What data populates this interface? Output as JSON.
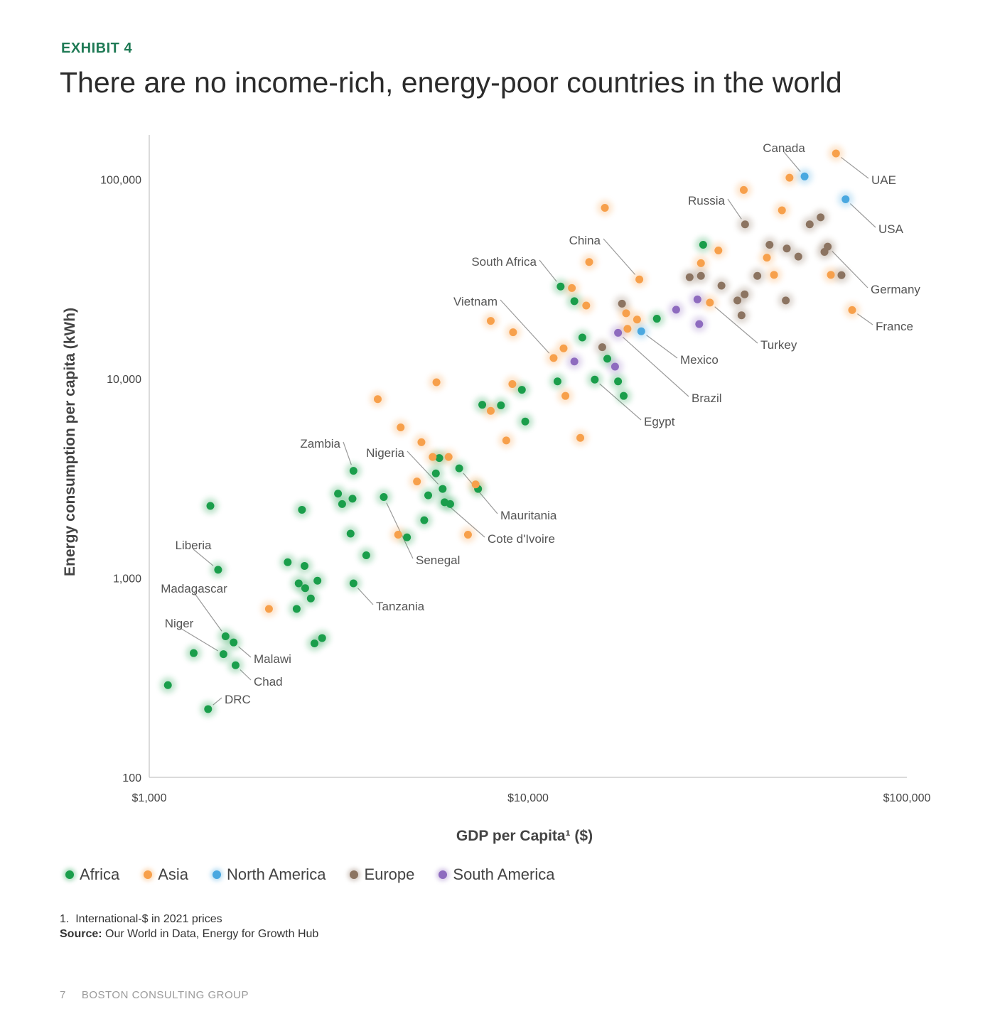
{
  "exhibit_label": "EXHIBIT 4",
  "headline": "There are no income-rich, energy-poor countries in the world",
  "footnote": "1.  International-$ in 2021 prices",
  "source_label": "Source:",
  "source_text": "Our World in Data, Energy for Growth Hub",
  "footer": {
    "page": "7",
    "brand": "BOSTON CONSULTING GROUP"
  },
  "colors": {
    "Africa": "#1a9e4b",
    "Asia": "#f7a04b",
    "North America": "#4aa8e0",
    "Europe": "#8c7461",
    "South America": "#8e6bbf"
  },
  "legend": [
    "Africa",
    "Asia",
    "North America",
    "Europe",
    "South America"
  ],
  "chart_data": {
    "type": "scatter",
    "x_scale": "log",
    "y_scale": "log",
    "xlabel": "GDP per Capita¹ ($)",
    "ylabel": "Energy consumption per capita (kWh)",
    "xlim": [
      1000,
      100000
    ],
    "ylim": [
      100,
      150000
    ],
    "x_ticks": [
      {
        "value": 1000,
        "label": "$1,000"
      },
      {
        "value": 10000,
        "label": "$10,000"
      },
      {
        "value": 100000,
        "label": "$100,000"
      }
    ],
    "y_ticks": [
      {
        "value": 100,
        "label": "100"
      },
      {
        "value": 1000,
        "label": "1,000"
      },
      {
        "value": 10000,
        "label": "10,000"
      },
      {
        "value": 100000,
        "label": "100,000"
      }
    ],
    "points": [
      {
        "x": 1120,
        "y": 290,
        "region": "Africa"
      },
      {
        "x": 1310,
        "y": 420,
        "region": "Africa"
      },
      {
        "x": 1430,
        "y": 220,
        "region": "Africa",
        "label": "DRC"
      },
      {
        "x": 1450,
        "y": 2300,
        "region": "Africa"
      },
      {
        "x": 1520,
        "y": 1100,
        "region": "Africa",
        "label": "Liberia"
      },
      {
        "x": 1570,
        "y": 415,
        "region": "Africa",
        "label": "Niger"
      },
      {
        "x": 1590,
        "y": 510,
        "region": "Africa",
        "label": "Madagascar"
      },
      {
        "x": 1670,
        "y": 475,
        "region": "Africa",
        "label": "Malawi"
      },
      {
        "x": 1690,
        "y": 365,
        "region": "Africa",
        "label": "Chad"
      },
      {
        "x": 2320,
        "y": 1200,
        "region": "Africa"
      },
      {
        "x": 2450,
        "y": 700,
        "region": "Africa"
      },
      {
        "x": 2480,
        "y": 940,
        "region": "Africa"
      },
      {
        "x": 2530,
        "y": 2200,
        "region": "Africa"
      },
      {
        "x": 2570,
        "y": 1150,
        "region": "Africa"
      },
      {
        "x": 2580,
        "y": 890,
        "region": "Africa"
      },
      {
        "x": 2670,
        "y": 790,
        "region": "Africa"
      },
      {
        "x": 2730,
        "y": 470,
        "region": "Africa"
      },
      {
        "x": 2780,
        "y": 970,
        "region": "Africa"
      },
      {
        "x": 2860,
        "y": 500,
        "region": "Africa"
      },
      {
        "x": 3150,
        "y": 2650,
        "region": "Africa"
      },
      {
        "x": 3230,
        "y": 2350,
        "region": "Africa"
      },
      {
        "x": 3400,
        "y": 1670,
        "region": "Africa"
      },
      {
        "x": 3440,
        "y": 2500,
        "region": "Africa"
      },
      {
        "x": 3460,
        "y": 3450,
        "region": "Africa",
        "label": "Zambia"
      },
      {
        "x": 3460,
        "y": 940,
        "region": "Africa",
        "label": "Tanzania"
      },
      {
        "x": 3740,
        "y": 1300,
        "region": "Africa"
      },
      {
        "x": 4160,
        "y": 2550,
        "region": "Africa",
        "label": "Senegal"
      },
      {
        "x": 4790,
        "y": 1600,
        "region": "Africa"
      },
      {
        "x": 5320,
        "y": 1950,
        "region": "Africa"
      },
      {
        "x": 5450,
        "y": 2600,
        "region": "Africa"
      },
      {
        "x": 5710,
        "y": 3350,
        "region": "Africa"
      },
      {
        "x": 5830,
        "y": 4000,
        "region": "Africa"
      },
      {
        "x": 5950,
        "y": 2800,
        "region": "Africa",
        "label": "Nigeria"
      },
      {
        "x": 6020,
        "y": 2400,
        "region": "Africa",
        "label": "Cote d'Ivoire"
      },
      {
        "x": 6230,
        "y": 2350,
        "region": "Africa"
      },
      {
        "x": 6580,
        "y": 3550,
        "region": "Africa",
        "label": "Mauritania"
      },
      {
        "x": 7380,
        "y": 2800,
        "region": "Africa"
      },
      {
        "x": 7570,
        "y": 7400,
        "region": "Africa"
      },
      {
        "x": 8480,
        "y": 7350,
        "region": "Africa"
      },
      {
        "x": 9630,
        "y": 8800,
        "region": "Africa"
      },
      {
        "x": 9830,
        "y": 6100,
        "region": "Africa"
      },
      {
        "x": 11960,
        "y": 9700,
        "region": "Africa"
      },
      {
        "x": 12190,
        "y": 29000,
        "region": "Africa",
        "label": "South Africa"
      },
      {
        "x": 13250,
        "y": 24500,
        "region": "Africa"
      },
      {
        "x": 13910,
        "y": 16100,
        "region": "Africa"
      },
      {
        "x": 15000,
        "y": 9900,
        "region": "Africa",
        "label": "Egypt"
      },
      {
        "x": 16190,
        "y": 12600,
        "region": "Africa"
      },
      {
        "x": 17280,
        "y": 9700,
        "region": "Africa"
      },
      {
        "x": 17880,
        "y": 8200,
        "region": "Africa"
      },
      {
        "x": 21880,
        "y": 20000,
        "region": "Africa"
      },
      {
        "x": 28990,
        "y": 47000,
        "region": "Africa"
      },
      {
        "x": 2070,
        "y": 700,
        "region": "Asia"
      },
      {
        "x": 4010,
        "y": 7900,
        "region": "Asia"
      },
      {
        "x": 4540,
        "y": 1650,
        "region": "Asia"
      },
      {
        "x": 4610,
        "y": 5700,
        "region": "Asia"
      },
      {
        "x": 5090,
        "y": 3050,
        "region": "Asia"
      },
      {
        "x": 5230,
        "y": 4800,
        "region": "Asia"
      },
      {
        "x": 5600,
        "y": 4050,
        "region": "Asia"
      },
      {
        "x": 5730,
        "y": 9600,
        "region": "Asia"
      },
      {
        "x": 6170,
        "y": 4050,
        "region": "Asia"
      },
      {
        "x": 6940,
        "y": 1650,
        "region": "Asia"
      },
      {
        "x": 7270,
        "y": 2950,
        "region": "Asia"
      },
      {
        "x": 7970,
        "y": 19500,
        "region": "Asia"
      },
      {
        "x": 7970,
        "y": 6900,
        "region": "Asia"
      },
      {
        "x": 8760,
        "y": 4900,
        "region": "Asia"
      },
      {
        "x": 9090,
        "y": 9400,
        "region": "Asia"
      },
      {
        "x": 9130,
        "y": 17100,
        "region": "Asia"
      },
      {
        "x": 11680,
        "y": 12700,
        "region": "Asia",
        "label": "Vietnam"
      },
      {
        "x": 12410,
        "y": 14200,
        "region": "Asia"
      },
      {
        "x": 12550,
        "y": 8200,
        "region": "Asia"
      },
      {
        "x": 13050,
        "y": 28500,
        "region": "Asia"
      },
      {
        "x": 13740,
        "y": 5050,
        "region": "Asia"
      },
      {
        "x": 14240,
        "y": 23300,
        "region": "Asia"
      },
      {
        "x": 14500,
        "y": 38500,
        "region": "Asia"
      },
      {
        "x": 15950,
        "y": 72000,
        "region": "Asia"
      },
      {
        "x": 18150,
        "y": 21300,
        "region": "Asia"
      },
      {
        "x": 18300,
        "y": 17800,
        "region": "Asia"
      },
      {
        "x": 19400,
        "y": 19800,
        "region": "Asia"
      },
      {
        "x": 19670,
        "y": 31500,
        "region": "Asia",
        "label": "China"
      },
      {
        "x": 28600,
        "y": 38000,
        "region": "Asia"
      },
      {
        "x": 30200,
        "y": 24100,
        "region": "Asia",
        "label": "Turkey"
      },
      {
        "x": 31800,
        "y": 44000,
        "region": "Asia"
      },
      {
        "x": 37100,
        "y": 88500,
        "region": "Asia"
      },
      {
        "x": 42700,
        "y": 40500,
        "region": "Asia"
      },
      {
        "x": 44600,
        "y": 33200,
        "region": "Asia"
      },
      {
        "x": 46800,
        "y": 70000,
        "region": "Asia"
      },
      {
        "x": 49000,
        "y": 102000,
        "region": "Asia"
      },
      {
        "x": 63000,
        "y": 33200,
        "region": "Asia"
      },
      {
        "x": 65000,
        "y": 135000,
        "region": "Asia",
        "label": "UAE"
      },
      {
        "x": 71700,
        "y": 22100,
        "region": "Asia",
        "label": "France"
      },
      {
        "x": 19900,
        "y": 17300,
        "region": "North America",
        "label": "Mexico"
      },
      {
        "x": 53700,
        "y": 103500,
        "region": "North America",
        "label": "Canada"
      },
      {
        "x": 68900,
        "y": 79500,
        "region": "North America",
        "label": "USA"
      },
      {
        "x": 15700,
        "y": 14400,
        "region": "Europe"
      },
      {
        "x": 17700,
        "y": 23800,
        "region": "Europe"
      },
      {
        "x": 26700,
        "y": 32300,
        "region": "Europe"
      },
      {
        "x": 28600,
        "y": 32800,
        "region": "Europe"
      },
      {
        "x": 32400,
        "y": 29300,
        "region": "Europe"
      },
      {
        "x": 35700,
        "y": 24700,
        "region": "Europe"
      },
      {
        "x": 36600,
        "y": 20800,
        "region": "Europe"
      },
      {
        "x": 37300,
        "y": 26500,
        "region": "Europe"
      },
      {
        "x": 37400,
        "y": 59500,
        "region": "Europe",
        "label": "Russia"
      },
      {
        "x": 40300,
        "y": 32800,
        "region": "Europe"
      },
      {
        "x": 43400,
        "y": 47000,
        "region": "Europe"
      },
      {
        "x": 47900,
        "y": 24700,
        "region": "Europe"
      },
      {
        "x": 48200,
        "y": 45000,
        "region": "Europe"
      },
      {
        "x": 51700,
        "y": 41000,
        "region": "Europe"
      },
      {
        "x": 55400,
        "y": 59500,
        "region": "Europe"
      },
      {
        "x": 59200,
        "y": 64500,
        "region": "Europe"
      },
      {
        "x": 60600,
        "y": 43300,
        "region": "Europe"
      },
      {
        "x": 61800,
        "y": 46000,
        "region": "Europe",
        "label": "Germany"
      },
      {
        "x": 67200,
        "y": 33100,
        "region": "Europe"
      },
      {
        "x": 13250,
        "y": 12200,
        "region": "South America"
      },
      {
        "x": 16970,
        "y": 11500,
        "region": "South America"
      },
      {
        "x": 17280,
        "y": 17000,
        "region": "South America",
        "label": "Brazil"
      },
      {
        "x": 24600,
        "y": 22200,
        "region": "South America"
      },
      {
        "x": 28000,
        "y": 25000,
        "region": "South America"
      },
      {
        "x": 28300,
        "y": 18800,
        "region": "South America"
      }
    ],
    "callouts": [
      {
        "name": "Canada",
        "tx": 1103,
        "ty": 208,
        "anchor": "middle"
      },
      {
        "name": "UAE",
        "tx": 1226,
        "ty": 253,
        "anchor": "start"
      },
      {
        "name": "USA",
        "tx": 1236,
        "ty": 322,
        "anchor": "start"
      },
      {
        "name": "Russia",
        "tx": 1020,
        "ty": 282,
        "anchor": "end"
      },
      {
        "name": "China",
        "tx": 845,
        "ty": 338,
        "anchor": "end"
      },
      {
        "name": "South Africa",
        "tx": 755,
        "ty": 368,
        "anchor": "end"
      },
      {
        "name": "Germany",
        "tx": 1225,
        "ty": 407,
        "anchor": "start"
      },
      {
        "name": "France",
        "tx": 1232,
        "ty": 459,
        "anchor": "start"
      },
      {
        "name": "Vietnam",
        "tx": 700,
        "ty": 424,
        "anchor": "end"
      },
      {
        "name": "Turkey",
        "tx": 1070,
        "ty": 485,
        "anchor": "start"
      },
      {
        "name": "Mexico",
        "tx": 957,
        "ty": 506,
        "anchor": "start"
      },
      {
        "name": "Brazil",
        "tx": 973,
        "ty": 560,
        "anchor": "start"
      },
      {
        "name": "Egypt",
        "tx": 906,
        "ty": 593,
        "anchor": "start"
      },
      {
        "name": "Zambia",
        "tx": 479,
        "ty": 624,
        "anchor": "end"
      },
      {
        "name": "Nigeria",
        "tx": 569,
        "ty": 637,
        "anchor": "end"
      },
      {
        "name": "Mauritania",
        "tx": 704,
        "ty": 725,
        "anchor": "start"
      },
      {
        "name": "Cote d'Ivoire",
        "tx": 686,
        "ty": 758,
        "anchor": "start"
      },
      {
        "name": "Senegal",
        "tx": 585,
        "ty": 788,
        "anchor": "start"
      },
      {
        "name": "Liberia",
        "tx": 272,
        "ty": 767,
        "anchor": "middle"
      },
      {
        "name": "Madagascar",
        "tx": 273,
        "ty": 828,
        "anchor": "middle"
      },
      {
        "name": "Tanzania",
        "tx": 529,
        "ty": 853,
        "anchor": "start"
      },
      {
        "name": "Niger",
        "tx": 252,
        "ty": 877,
        "anchor": "middle"
      },
      {
        "name": "Malawi",
        "tx": 357,
        "ty": 927,
        "anchor": "start"
      },
      {
        "name": "Chad",
        "tx": 357,
        "ty": 959,
        "anchor": "start"
      },
      {
        "name": "DRC",
        "tx": 316,
        "ty": 984,
        "anchor": "start"
      }
    ]
  }
}
